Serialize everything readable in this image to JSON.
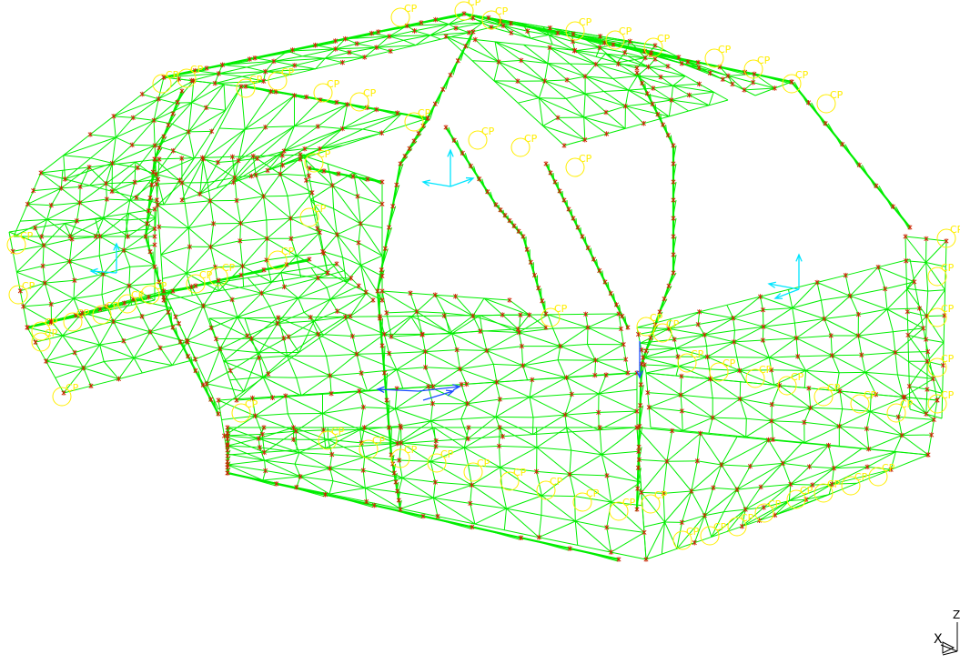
{
  "viewport": {
    "background": "#ffffff",
    "colors": {
      "mesh": "#00ee00",
      "node": "#cc2200",
      "cp_marker": "#ffee00",
      "load_arrow_cyan": "#00e5ff",
      "load_arrow_blue": "#1a4dff",
      "triad": "#000000"
    }
  },
  "cp_label": "CP",
  "triad": {
    "x_label": "X",
    "z_label": "Z"
  },
  "icons": [
    "mesh-wireframe-icon",
    "cp-marker-icon",
    "load-arrow-icon",
    "axis-triad-icon"
  ]
}
